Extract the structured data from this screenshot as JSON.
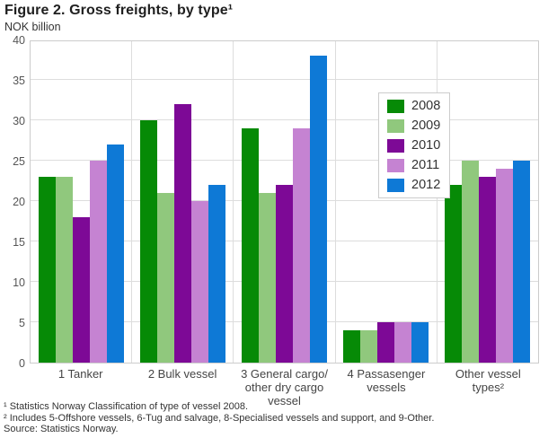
{
  "header": {
    "title": "Figure 2. Gross freights, by type¹",
    "unit_label": "NOK billion"
  },
  "chart_data": {
    "type": "bar",
    "title": "Figure 2. Gross freights, by type¹",
    "ylabel": "NOK billion",
    "xlabel": "",
    "ylim": [
      0,
      40
    ],
    "ytick_step": 5,
    "grid": true,
    "legend_position": "top-right",
    "categories": [
      "1 Tanker",
      "2 Bulk vessel",
      "3 General cargo/\nother dry cargo\nvessel",
      "4 Passasenger\nvessels",
      "Other vessel\ntypes²"
    ],
    "series": [
      {
        "name": "2008",
        "color": "#068a06",
        "values": [
          23,
          30,
          29,
          4,
          22
        ]
      },
      {
        "name": "2009",
        "color": "#90c87d",
        "values": [
          23,
          21,
          21,
          4,
          25
        ]
      },
      {
        "name": "2010",
        "color": "#7d0996",
        "values": [
          18,
          32,
          22,
          5,
          23
        ]
      },
      {
        "name": "2011",
        "color": "#c583d2",
        "values": [
          25,
          20,
          29,
          5,
          24
        ]
      },
      {
        "name": "2012",
        "color": "#0e79d6",
        "values": [
          27,
          22,
          38,
          5,
          25
        ]
      }
    ]
  },
  "footnotes": {
    "line1": "¹ Statistics Norway Classification of type of vessel 2008.",
    "line2": "² Includes 5-Offshore vessels, 6-Tug and salvage, 8-Specialised vessels and support, and 9-Other.",
    "source": "Source: Statistics Norway."
  }
}
